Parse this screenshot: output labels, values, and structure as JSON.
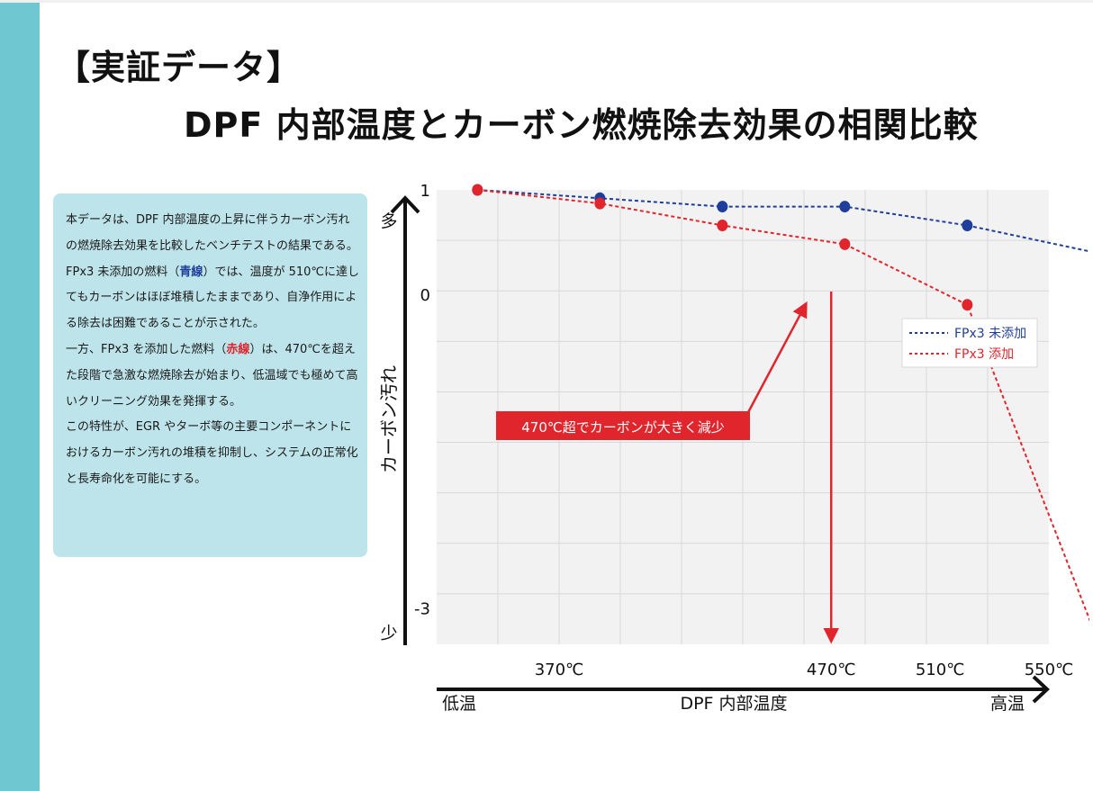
{
  "page": {
    "title_line1": "【実証データ】",
    "title_line2": "DPF 内部温度とカーボン燃焼除去効果の相関比較"
  },
  "description": {
    "p1": "本データは、DPF 内部温度の上昇に伴うカーボン汚れの燃焼除去効果を比較したベンチテストの結果である。",
    "p2_before": "FPx3 未添加の燃料（",
    "p2_highlight": "青線",
    "p2_after": "）では、温度が 510℃に達してもカーボンはほぼ堆積したままであり、自浄作用による除去は困難であることが示された。",
    "p3_before": "一方、FPx3 を添加した燃料（",
    "p3_highlight": "赤線",
    "p3_after": "）は、470℃を超えた段階で急激な燃焼除去が始まり、低温域でも極めて高いクリーニング効果を発揮する。",
    "p4": "この特性が、EGR やターボ等の主要コンポーネントにおけるカーボン汚れの堆積を抑制し、システムの正常化と長寿命化を可能にする。"
  },
  "chart_data": {
    "type": "line",
    "xlabel": "DPF 内部温度",
    "xlabel_low": "低温",
    "xlabel_high": "高温",
    "ylabel": "カーボン汚れ",
    "ylabel_top": "多",
    "ylabel_bottom": "少",
    "xlim": [
      325,
      550
    ],
    "ylim": [
      -3.35,
      1
    ],
    "x_ticks": [
      {
        "value": 370,
        "label": "370℃"
      },
      {
        "value": 470,
        "label": "470℃"
      },
      {
        "value": 510,
        "label": "510℃"
      },
      {
        "value": 550,
        "label": "550℃"
      }
    ],
    "y_ticks": [
      {
        "value": 1,
        "label": "1"
      },
      {
        "value": 0,
        "label": "0"
      },
      {
        "value": -3,
        "label": "-3"
      }
    ],
    "grid": true,
    "legend_position": "right",
    "series": [
      {
        "name": "FPx3 未添加",
        "color": "#1f3e9a",
        "points": [
          [
            340,
            1.0
          ],
          [
            385,
            0.92
          ],
          [
            430,
            0.84
          ],
          [
            475,
            0.84
          ],
          [
            520,
            0.66
          ],
          [
            567,
            0.4
          ]
        ]
      },
      {
        "name": "FPx3 添加",
        "color": "#e0262c",
        "points": [
          [
            340,
            1.0
          ],
          [
            385,
            0.87
          ],
          [
            430,
            0.66
          ],
          [
            475,
            0.48
          ],
          [
            520,
            -0.1
          ],
          [
            567,
            -3.25
          ]
        ]
      }
    ],
    "annotation": {
      "text": "470℃超でカーボンが大きく減少",
      "color": "#e0262c",
      "marker_x": 470
    }
  }
}
